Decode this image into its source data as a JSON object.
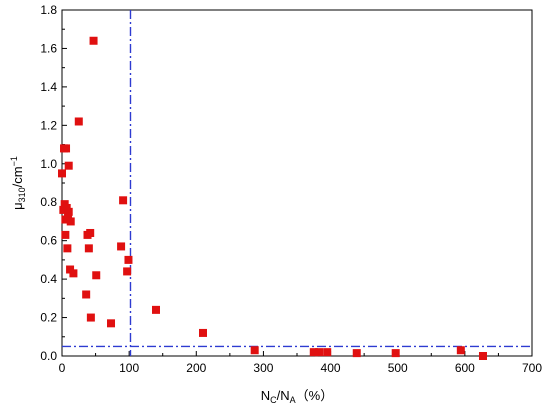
{
  "chart_data": {
    "type": "scatter",
    "xlabel": {
      "main": "N",
      "sub1": "C",
      "mid": "/N",
      "sub2": "A",
      "unit": "（%）"
    },
    "ylabel": {
      "main": "μ",
      "sub": "310",
      "mid": "/cm",
      "sup": "−1"
    },
    "xlim": [
      0,
      700
    ],
    "ylim": [
      0,
      1.8
    ],
    "x_ticks": [
      0,
      100,
      200,
      300,
      400,
      500,
      600,
      700
    ],
    "y_ticks": [
      0.0,
      0.2,
      0.4,
      0.6,
      0.8,
      1.0,
      1.2,
      1.4,
      1.6,
      1.8
    ],
    "x_tick_labels": [
      "0",
      "100",
      "200",
      "300",
      "400",
      "500",
      "600",
      "700"
    ],
    "y_tick_labels": [
      "0.0",
      "0.2",
      "0.4",
      "0.6",
      "0.8",
      "1.0",
      "1.2",
      "1.4",
      "1.6",
      "1.8"
    ],
    "reference_lines": {
      "vertical_x": 102,
      "horizontal_y": 0.05,
      "color": "#2e3bd1"
    },
    "marker_color": "#e01010",
    "grid": false,
    "points": [
      {
        "x": 47,
        "y": 1.64
      },
      {
        "x": 25,
        "y": 1.22
      },
      {
        "x": 3,
        "y": 1.08
      },
      {
        "x": 6,
        "y": 1.08
      },
      {
        "x": 10,
        "y": 0.99
      },
      {
        "x": 0,
        "y": 0.95
      },
      {
        "x": 91,
        "y": 0.81
      },
      {
        "x": 4,
        "y": 0.79
      },
      {
        "x": 7,
        "y": 0.77
      },
      {
        "x": 2,
        "y": 0.76
      },
      {
        "x": 10,
        "y": 0.75
      },
      {
        "x": 9,
        "y": 0.72
      },
      {
        "x": 5,
        "y": 0.71
      },
      {
        "x": 13,
        "y": 0.7
      },
      {
        "x": 42,
        "y": 0.64
      },
      {
        "x": 38,
        "y": 0.63
      },
      {
        "x": 5,
        "y": 0.63
      },
      {
        "x": 88,
        "y": 0.57
      },
      {
        "x": 40,
        "y": 0.56
      },
      {
        "x": 8,
        "y": 0.56
      },
      {
        "x": 99,
        "y": 0.5
      },
      {
        "x": 12,
        "y": 0.45
      },
      {
        "x": 97,
        "y": 0.44
      },
      {
        "x": 17,
        "y": 0.43
      },
      {
        "x": 51,
        "y": 0.42
      },
      {
        "x": 36,
        "y": 0.32
      },
      {
        "x": 140,
        "y": 0.24
      },
      {
        "x": 43,
        "y": 0.2
      },
      {
        "x": 73,
        "y": 0.17
      },
      {
        "x": 210,
        "y": 0.12
      },
      {
        "x": 287,
        "y": 0.03
      },
      {
        "x": 375,
        "y": 0.02
      },
      {
        "x": 383,
        "y": 0.02
      },
      {
        "x": 395,
        "y": 0.02
      },
      {
        "x": 439,
        "y": 0.015
      },
      {
        "x": 497,
        "y": 0.015
      },
      {
        "x": 594,
        "y": 0.03
      },
      {
        "x": 627,
        "y": 0.0
      }
    ]
  }
}
